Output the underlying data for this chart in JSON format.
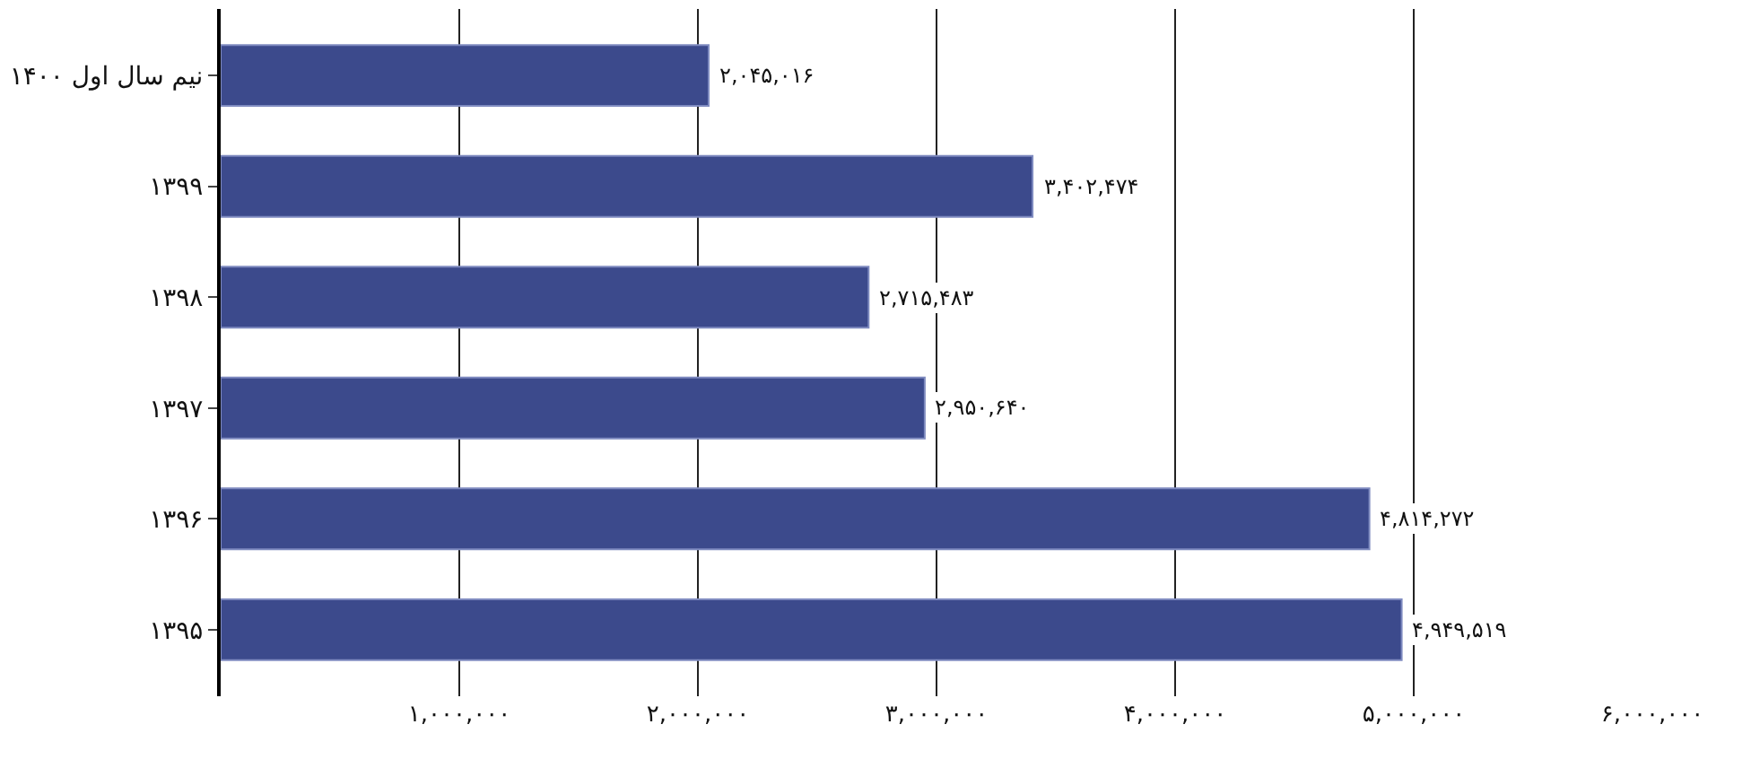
{
  "chart_data": {
    "type": "bar",
    "orientation": "horizontal",
    "categories": [
      "نیم سال اول ۱۴۰۰",
      "۱۳۹۹",
      "۱۳۹۸",
      "۱۳۹۷",
      "۱۳۹۶",
      "۱۳۹۵"
    ],
    "values": [
      2045016,
      3402474,
      2715483,
      2950640,
      4814272,
      4949519
    ],
    "value_labels": [
      "۲,۰۴۵,۰۱۶",
      "۳,۴۰۲,۴۷۴",
      "۲,۷۱۵,۴۸۳",
      "۲,۹۵۰,۶۴۰",
      "۴,۸۱۴,۲۷۲",
      "۴,۹۴۹,۵۱۹"
    ],
    "color": "#3c4a8c",
    "xlim": [
      0,
      6000000
    ],
    "xticks": [
      {
        "value": 1000000,
        "label": "۱,۰۰۰,۰۰۰"
      },
      {
        "value": 2000000,
        "label": "۲,۰۰۰,۰۰۰"
      },
      {
        "value": 3000000,
        "label": "۳,۰۰۰,۰۰۰"
      },
      {
        "value": 4000000,
        "label": "۴,۰۰۰,۰۰۰"
      },
      {
        "value": 5000000,
        "label": "۵,۰۰۰,۰۰۰"
      },
      {
        "value": 6000000,
        "label": "۶,۰۰۰,۰۰۰"
      }
    ],
    "grid": "x"
  }
}
